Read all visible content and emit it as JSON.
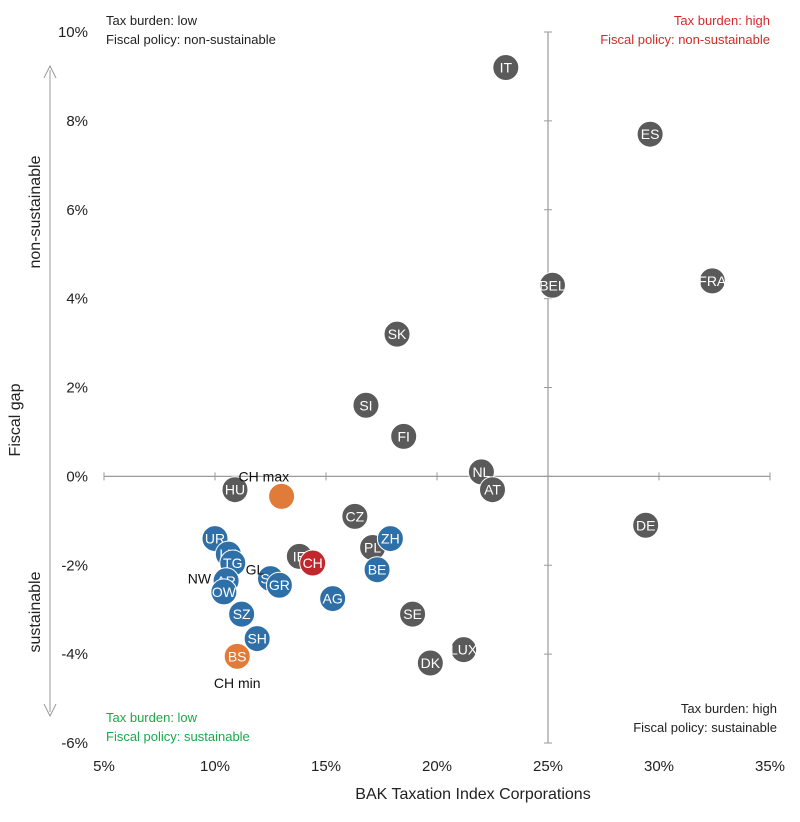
{
  "chart_data": {
    "type": "scatter",
    "xlabel": "BAK Taxation Index Corporations",
    "ylabel": "Fiscal gap",
    "xlim": [
      5,
      35
    ],
    "ylim": [
      -6,
      10
    ],
    "x_ticks": [
      "5%",
      "10%",
      "15%",
      "20%",
      "25%",
      "30%",
      "35%"
    ],
    "y_ticks": [
      "10%",
      "8%",
      "6%",
      "4%",
      "2%",
      "0%",
      "-2%",
      "-4%",
      "-6%"
    ],
    "y_arrow_top_label": "non-sustainable",
    "y_arrow_bottom_label": "sustainable",
    "quadrants": {
      "top_left": [
        "Tax burden: low",
        "Fiscal policy: non-sustainable"
      ],
      "top_right": [
        "Tax burden: high",
        "Fiscal policy: non-sustainable"
      ],
      "bottom_left": [
        "Tax burden: low",
        "Fiscal policy: sustainable"
      ],
      "bottom_right": [
        "Tax burden: high",
        "Fiscal policy: sustainable"
      ]
    },
    "colors": {
      "country": "#5a5a5a",
      "canton": "#2f6fa8",
      "switzerland": "#c0282d",
      "extreme": "#e07b39",
      "quad_red": "#d42a2a",
      "quad_green": "#1aa84a",
      "quad_black": "#222222"
    },
    "points": [
      {
        "label": "IT",
        "x": 23.1,
        "y": 9.2,
        "group": "country"
      },
      {
        "label": "ES",
        "x": 29.6,
        "y": 7.7,
        "group": "country"
      },
      {
        "label": "BEL",
        "x": 25.2,
        "y": 4.3,
        "group": "country"
      },
      {
        "label": "FRA",
        "x": 32.4,
        "y": 4.4,
        "group": "country"
      },
      {
        "label": "SK",
        "x": 18.2,
        "y": 3.2,
        "group": "country"
      },
      {
        "label": "SI",
        "x": 16.8,
        "y": 1.6,
        "group": "country"
      },
      {
        "label": "FI",
        "x": 18.5,
        "y": 0.9,
        "group": "country"
      },
      {
        "label": "NL",
        "x": 22.0,
        "y": 0.1,
        "group": "country"
      },
      {
        "label": "AT",
        "x": 22.5,
        "y": -0.3,
        "group": "country"
      },
      {
        "label": "HU",
        "x": 10.9,
        "y": -0.3,
        "group": "country"
      },
      {
        "label": "DE",
        "x": 29.4,
        "y": -1.1,
        "group": "country"
      },
      {
        "label": "CZ",
        "x": 16.3,
        "y": -0.9,
        "group": "country"
      },
      {
        "label": "PL",
        "x": 17.1,
        "y": -1.6,
        "group": "country"
      },
      {
        "label": "IE",
        "x": 13.8,
        "y": -1.8,
        "group": "country"
      },
      {
        "label": "SE",
        "x": 18.9,
        "y": -3.1,
        "group": "country"
      },
      {
        "label": "LUX",
        "x": 21.2,
        "y": -3.9,
        "group": "country"
      },
      {
        "label": "DK",
        "x": 19.7,
        "y": -4.2,
        "group": "country"
      },
      {
        "label": "UR",
        "x": 10.0,
        "y": -1.4,
        "group": "canton"
      },
      {
        "label": "LU",
        "x": 10.6,
        "y": -1.75,
        "group": "canton"
      },
      {
        "label": "TG",
        "x": 10.8,
        "y": -1.95,
        "group": "canton"
      },
      {
        "label": "AR",
        "x": 10.5,
        "y": -2.35,
        "group": "canton"
      },
      {
        "label": "OW",
        "x": 10.4,
        "y": -2.6,
        "group": "canton"
      },
      {
        "label": "SZ",
        "x": 11.2,
        "y": -3.1,
        "group": "canton"
      },
      {
        "label": "SH",
        "x": 11.9,
        "y": -3.65,
        "group": "canton"
      },
      {
        "label": "SG",
        "x": 12.5,
        "y": -2.3,
        "group": "canton"
      },
      {
        "label": "GR",
        "x": 12.9,
        "y": -2.45,
        "group": "canton"
      },
      {
        "label": "AG",
        "x": 15.3,
        "y": -2.75,
        "group": "canton"
      },
      {
        "label": "BE",
        "x": 17.3,
        "y": -2.1,
        "group": "canton"
      },
      {
        "label": "ZH",
        "x": 17.9,
        "y": -1.4,
        "group": "canton"
      },
      {
        "label": "CH",
        "x": 14.4,
        "y": -1.95,
        "group": "switzerland"
      },
      {
        "label": "",
        "x": 13.0,
        "y": -0.45,
        "group": "extreme"
      },
      {
        "label": "BS",
        "x": 11.0,
        "y": -4.05,
        "group": "extreme"
      }
    ],
    "external_labels": [
      {
        "text": "CH max",
        "x": 12.2,
        "y": 0.0
      },
      {
        "text": "CH min",
        "x": 11.0,
        "y": -4.65
      },
      {
        "text": "GL",
        "x": 11.8,
        "y": -2.1
      },
      {
        "text": "NW",
        "x": 9.3,
        "y": -2.3
      }
    ]
  }
}
